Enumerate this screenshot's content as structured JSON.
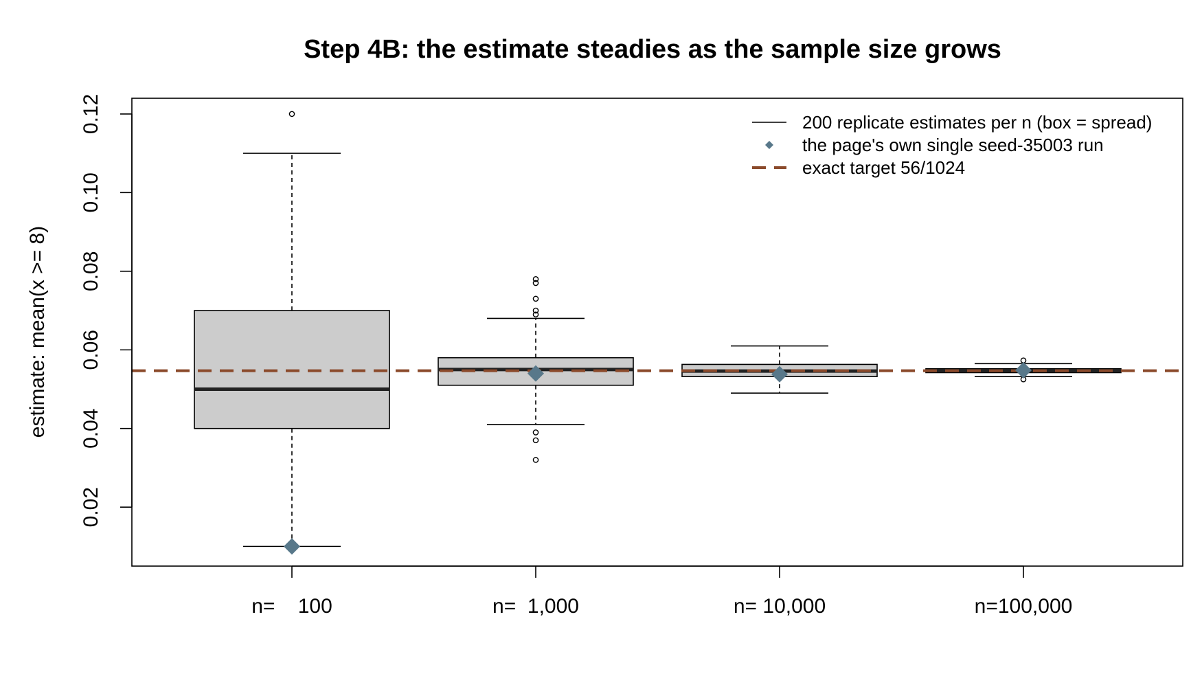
{
  "chart_data": {
    "type": "box",
    "title": "Step 4B: the estimate steadies as the sample size grows",
    "xlabel": "",
    "ylabel": "estimate: mean(x >= 8)",
    "ylim": [
      0.005,
      0.124
    ],
    "yticks": [
      0.02,
      0.04,
      0.06,
      0.08,
      0.1,
      0.12
    ],
    "ytick_labels": [
      "0.02",
      "0.04",
      "0.06",
      "0.08",
      "0.10",
      "0.12"
    ],
    "categories": [
      "n=    100",
      "n=  1,000",
      "n= 10,000",
      "n=100,000"
    ],
    "boxes": [
      {
        "whisker_low": 0.01,
        "q1": 0.04,
        "median": 0.05,
        "q3": 0.07,
        "whisker_high": 0.11,
        "outliers": [
          0.12
        ],
        "single_run": 0.01
      },
      {
        "whisker_low": 0.041,
        "q1": 0.051,
        "median": 0.055,
        "q3": 0.058,
        "whisker_high": 0.068,
        "outliers": [
          0.032,
          0.037,
          0.039,
          0.069,
          0.07,
          0.073,
          0.077,
          0.078
        ],
        "single_run": 0.054
      },
      {
        "whisker_low": 0.049,
        "q1": 0.0532,
        "median": 0.0546,
        "q3": 0.0563,
        "whisker_high": 0.061,
        "outliers": [],
        "single_run": 0.0538
      },
      {
        "whisker_low": 0.0532,
        "q1": 0.0542,
        "median": 0.0547,
        "q3": 0.0552,
        "whisker_high": 0.0565,
        "outliers": [
          0.0525,
          0.0573
        ],
        "single_run": 0.0548
      }
    ],
    "reference_line": {
      "value": 0.0546875,
      "label": "exact target 56/1024",
      "color": "#8B4A2B",
      "style": "dashed"
    },
    "legend": {
      "position": "top-right",
      "entries": [
        {
          "label": "200 replicate estimates per n (box = spread)",
          "kind": "line",
          "color": "#000000"
        },
        {
          "label": "the page's own single seed-35003 run",
          "kind": "diamond",
          "color": "#58788A"
        },
        {
          "label": "exact target 56/1024",
          "kind": "dashed",
          "color": "#8B4A2B"
        }
      ]
    },
    "colors": {
      "box_fill": "#CCCCCC",
      "box_border": "#000000",
      "median_line": "#222222",
      "single_run_marker": "#58788A",
      "reference_line": "#8B4A2B"
    },
    "grid": false
  }
}
